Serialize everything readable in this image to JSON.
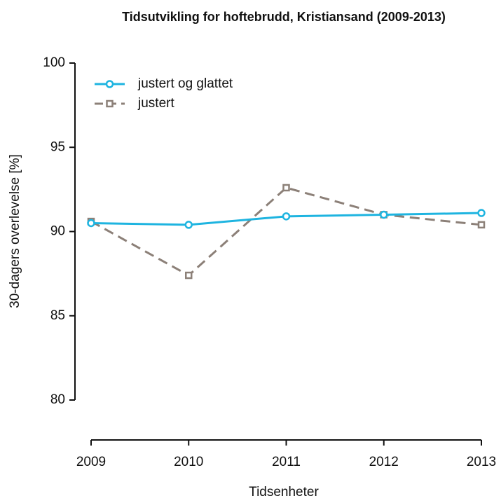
{
  "chart_data": {
    "type": "line",
    "title": "Tidsutvikling for hoftebrudd, Kristiansand (2009-2013)",
    "x_label": "Tidsenheter",
    "y_label": "30-dagers overlevelse [%]",
    "categories": [
      "2009",
      "2010",
      "2011",
      "2012",
      "2013"
    ],
    "series": [
      {
        "name": "justert og glattet",
        "color": "#1eb4e0",
        "marker": "circle",
        "line_style": "solid",
        "values": [
          90.5,
          90.4,
          90.9,
          91.0,
          91.1
        ]
      },
      {
        "name": "justert",
        "color": "#8c8078",
        "marker": "square",
        "line_style": "dashed",
        "values": [
          90.6,
          87.4,
          92.6,
          91.0,
          90.4
        ]
      }
    ],
    "ylim": [
      80,
      100
    ],
    "yticks": [
      80,
      85,
      90,
      95,
      100
    ],
    "legend": "top-left",
    "grid": false
  }
}
